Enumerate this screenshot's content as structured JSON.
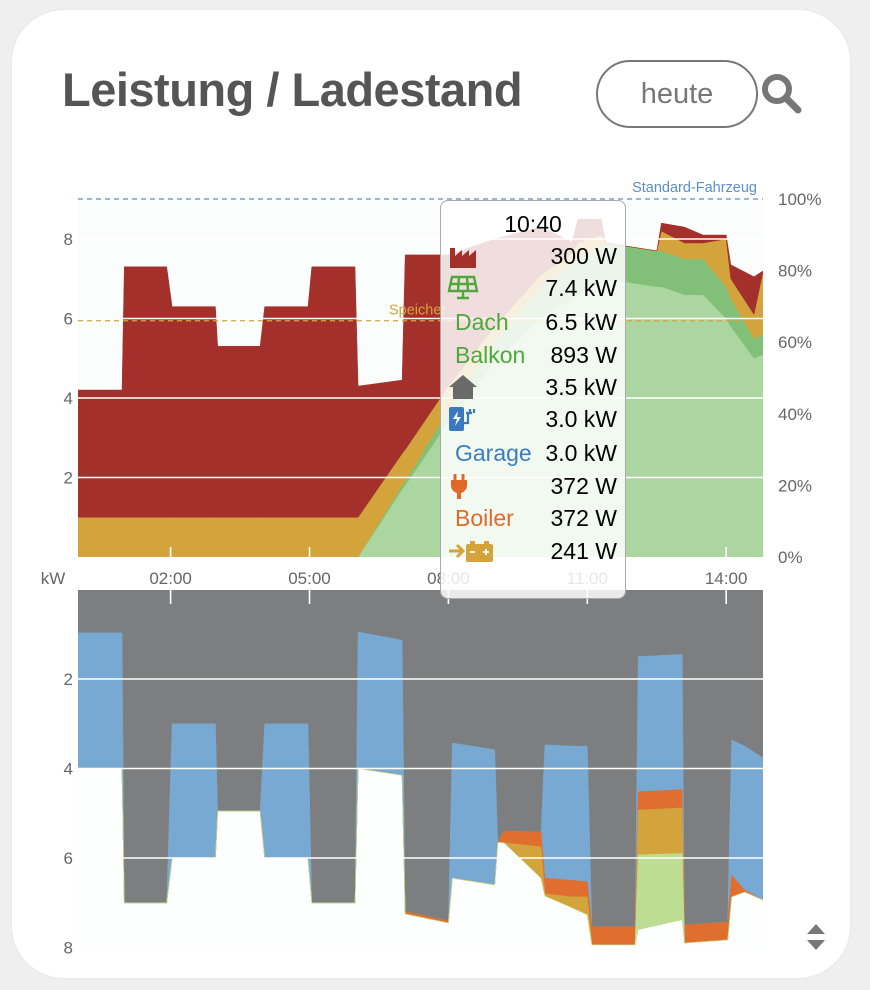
{
  "header": {
    "title": "Leistung / Ladestand",
    "period_button": "heute",
    "search_icon": "search-icon"
  },
  "colors": {
    "grid": "#a3302b",
    "battery": "#d4a43c",
    "dach": "#acd6a0",
    "balkon": "#82c07a",
    "house": "#7d7e7f",
    "garage": "#78a9d2",
    "boiler": "#e06e2f",
    "other": "#bddd92",
    "vehicle_line": "#5b8fc7",
    "text": "#555555"
  },
  "chart_data": [
    {
      "type": "area",
      "stacked": true,
      "xlim": [
        "00:00",
        "14:48"
      ],
      "ylim": [
        0,
        9
      ],
      "ylabel": "kW",
      "y2lim": [
        0,
        100
      ],
      "grid": true,
      "x_ticks": [
        "02:00",
        "05:00",
        "08:00",
        "11:00",
        "14:00"
      ],
      "y_ticks": [
        "2",
        "4",
        "6",
        "8"
      ],
      "y2_ticks": [
        "0%",
        "20%",
        "40%",
        "60%",
        "80%",
        "100%"
      ],
      "reference_lines": [
        {
          "label": "Standard-Fahrzeug",
          "percent": 100,
          "color": "#5b8fc7"
        },
        {
          "label": "Speicher",
          "percent": 66,
          "color": "#d4a43c"
        }
      ],
      "x": [
        "00:00",
        "00:57",
        "01:00",
        "01:55",
        "02:02",
        "02:58",
        "03:01",
        "03:56",
        "04:02",
        "04:58",
        "05:03",
        "05:59",
        "06:03",
        "07:00",
        "07:04",
        "08:00",
        "09:00",
        "10:00",
        "10:40",
        "10:48",
        "11:18",
        "11:24",
        "12:30",
        "12:36",
        "13:06",
        "13:30",
        "14:00",
        "14:06",
        "14:36",
        "14:48"
      ],
      "series": [
        {
          "name": "Dach",
          "icon": "solar-panel-icon",
          "color": "#acd6a0",
          "values": [
            0,
            0,
            0,
            0,
            0,
            0,
            0,
            0,
            0,
            0,
            0,
            0,
            0,
            1.7,
            1.8,
            3.4,
            4.9,
            6.0,
            6.5,
            6.6,
            6.9,
            7.0,
            6.8,
            6.8,
            6.6,
            6.6,
            6.0,
            5.8,
            5.0,
            5.1
          ]
        },
        {
          "name": "Balkon",
          "icon": "solar-panel-icon",
          "color": "#82c07a",
          "values": [
            0,
            0,
            0,
            0,
            0,
            0,
            0,
            0,
            0,
            0,
            0,
            0,
            0,
            0.1,
            0.1,
            0.3,
            0.5,
            0.8,
            0.89,
            0.9,
            0.9,
            0.9,
            0.9,
            0.9,
            0.9,
            0.9,
            0.8,
            0.7,
            0.5,
            0.5
          ]
        },
        {
          "icon": "battery-icon",
          "color": "#d4a43c",
          "values": [
            1.0,
            1.0,
            1.0,
            1.0,
            1.0,
            1.0,
            1.0,
            1.0,
            1.0,
            1.0,
            1.0,
            1.0,
            1.0,
            0.8,
            0.8,
            0.6,
            0.4,
            0.3,
            0.24,
            0.4,
            0.3,
            0,
            0,
            0.5,
            0.4,
            0.4,
            1.2,
            0.5,
            0.6,
            1.6
          ]
        },
        {
          "icon": "factory-icon",
          "color": "#a3302b",
          "values": [
            3.2,
            3.2,
            6.3,
            6.3,
            5.3,
            5.3,
            4.3,
            4.3,
            5.3,
            5.3,
            6.3,
            6.3,
            3.3,
            1.85,
            4.9,
            3.3,
            2.2,
            1.2,
            0.3,
            0.6,
            0.4,
            0,
            0,
            0.2,
            0.4,
            0.2,
            0.1,
            0.35,
            0.95,
            0
          ]
        }
      ]
    },
    {
      "type": "area",
      "stacked": true,
      "inverted_y": true,
      "xlim": [
        "00:00",
        "14:48"
      ],
      "ylim": [
        0,
        8
      ],
      "grid": true,
      "y_ticks": [
        "2",
        "4",
        "6",
        "8"
      ],
      "x": [
        "00:00",
        "00:57",
        "01:00",
        "01:55",
        "02:02",
        "02:58",
        "03:01",
        "03:56",
        "04:02",
        "04:58",
        "05:03",
        "05:59",
        "06:03",
        "07:00",
        "07:04",
        "08:00",
        "08:05",
        "09:00",
        "09:04",
        "09:12",
        "10:00",
        "10:05",
        "10:40",
        "11:00",
        "11:06",
        "12:02",
        "12:06",
        "13:03",
        "13:06",
        "14:02",
        "14:07",
        "14:24",
        "14:48"
      ],
      "series": [
        {
          "icon": "house-icon",
          "color": "#7d7e7f",
          "values": [
            0.97,
            0.97,
            7.0,
            7.0,
            3.0,
            3.0,
            4.95,
            4.95,
            3.0,
            3.0,
            7.0,
            7.0,
            0.95,
            1.13,
            7.2,
            7.4,
            3.43,
            3.58,
            5.65,
            5.4,
            5.42,
            3.47,
            3.5,
            3.5,
            7.54,
            7.54,
            1.5,
            1.45,
            7.5,
            7.43,
            3.36,
            3.5,
            3.77
          ]
        },
        {
          "name": "Garage",
          "icon": "ev-charger-icon",
          "color": "#78a9d2",
          "values": [
            3.03,
            3.03,
            0,
            0,
            3.0,
            3.0,
            0,
            0,
            3.0,
            3.0,
            0,
            0,
            3.05,
            3.02,
            0,
            0,
            3.02,
            3.02,
            0,
            0,
            0,
            2.98,
            3.0,
            3.03,
            0,
            0,
            3.02,
            3.02,
            0,
            0,
            3.02,
            3.22,
            3.17
          ]
        },
        {
          "name": "Boiler",
          "icon": "plug-icon",
          "color": "#e06e2f",
          "values": [
            0,
            0,
            0,
            0,
            0,
            0,
            0,
            0,
            0,
            0,
            0,
            0,
            0,
            0,
            0.05,
            0.05,
            0,
            0,
            0,
            0.26,
            0.33,
            0.35,
            0.37,
            0.34,
            0.4,
            0.4,
            0.41,
            0.41,
            0.4,
            0.4,
            0.49,
            0.04,
            0
          ]
        },
        {
          "icon": "battery-charge-icon",
          "color": "#d4a43c",
          "values": [
            0,
            0,
            0,
            0,
            0,
            0,
            0,
            0,
            0,
            0,
            0,
            0,
            0,
            0,
            0,
            0,
            0,
            0,
            0,
            0,
            0.7,
            0.05,
            0.24,
            0.4,
            0,
            0,
            1.0,
            1.02,
            0,
            0,
            0,
            0,
            0
          ]
        },
        {
          "color": "#bddd92",
          "values": [
            0,
            0,
            0,
            0,
            0,
            0,
            0,
            0,
            0,
            0,
            0,
            0,
            0,
            0,
            0,
            0,
            0,
            0,
            0,
            0,
            0,
            0,
            0,
            0,
            0,
            0,
            1.67,
            1.48,
            0,
            0,
            0,
            0,
            0
          ]
        }
      ]
    }
  ],
  "tooltip": {
    "time": "10:40",
    "rows": [
      {
        "icon": "factory-icon",
        "label": "",
        "value": "300 W"
      },
      {
        "icon": "solar-panel-icon",
        "label": "",
        "value": "7.4 kW"
      },
      {
        "icon": "",
        "label": "Dach",
        "value": "6.5 kW"
      },
      {
        "icon": "",
        "label": "Balkon",
        "value": "893 W"
      },
      {
        "icon": "house-icon",
        "label": "",
        "value": "3.5 kW"
      },
      {
        "icon": "ev-charger-icon",
        "label": "",
        "value": "3.0 kW"
      },
      {
        "icon": "",
        "label": "Garage",
        "value": "3.0 kW"
      },
      {
        "icon": "plug-icon",
        "label": "",
        "value": "372 W"
      },
      {
        "icon": "",
        "label": "Boiler",
        "value": "372 W"
      },
      {
        "icon": "battery-charge-icon",
        "label": "",
        "value": "241 W"
      }
    ]
  },
  "sort_icon": "sort-icon"
}
